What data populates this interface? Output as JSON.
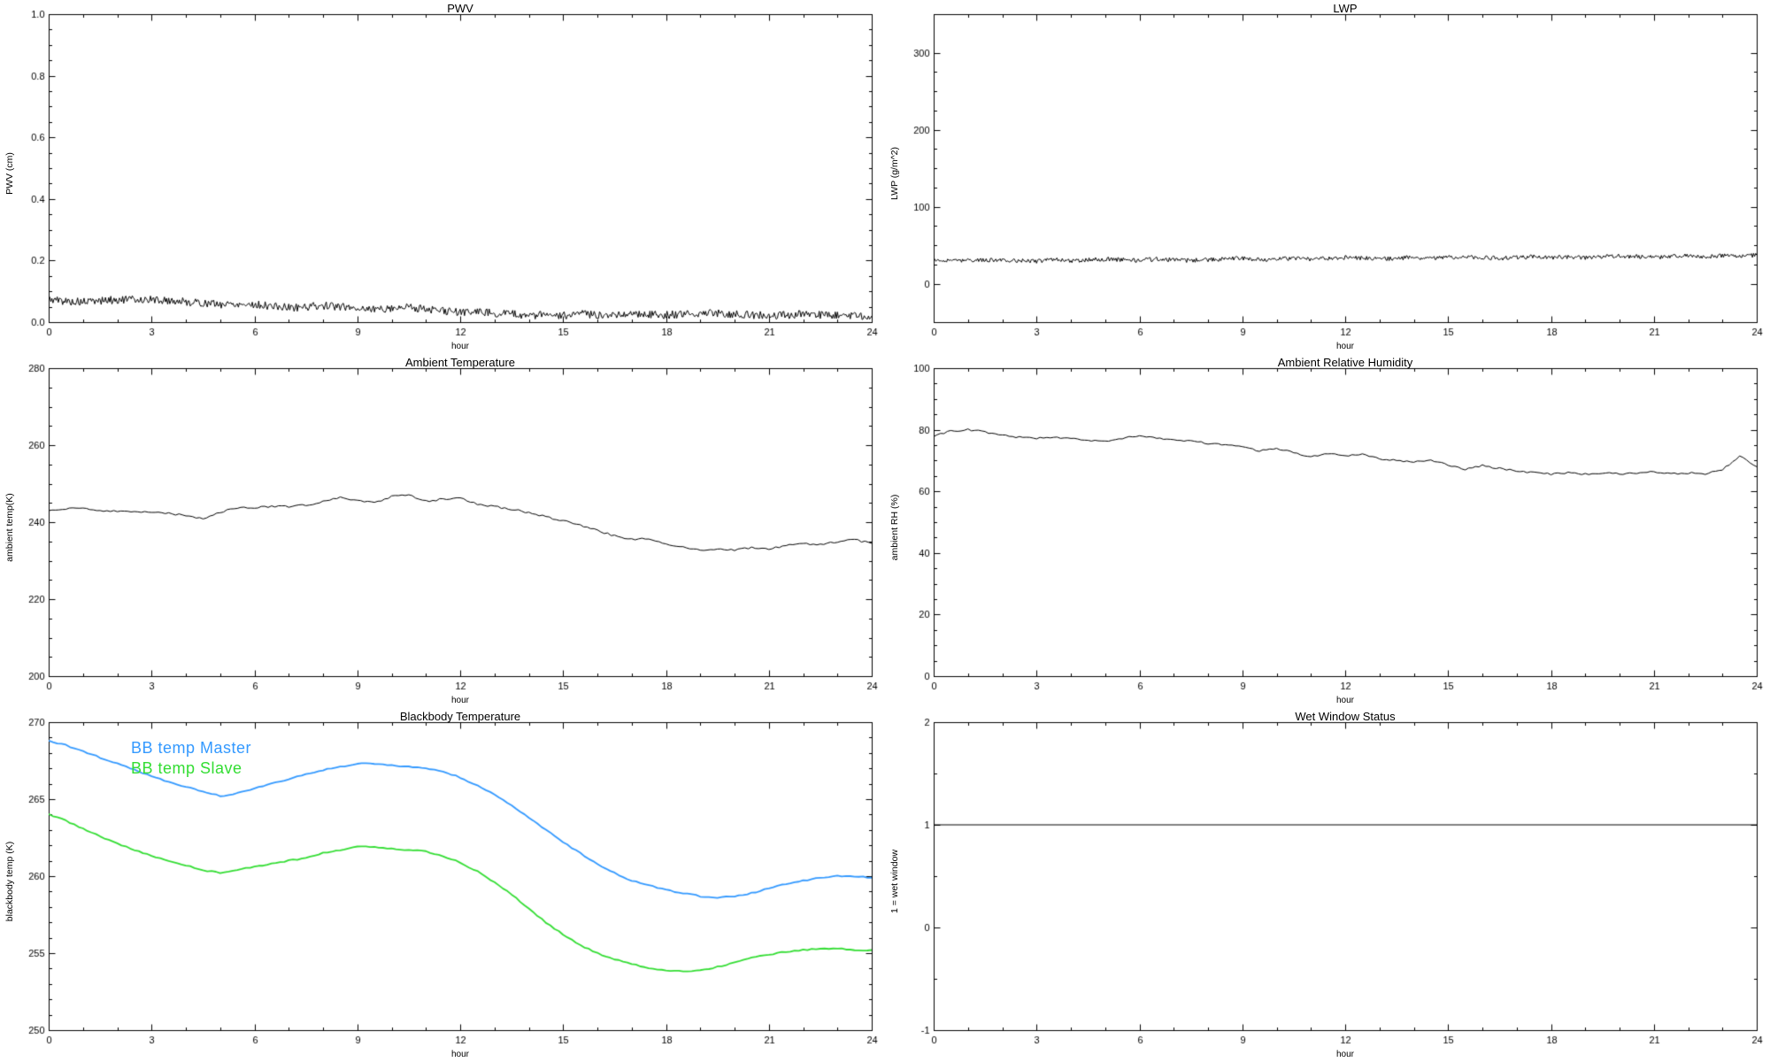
{
  "page": {
    "background": "#ffffff",
    "text_color": "#000000"
  },
  "chart_data": [
    {
      "type": "line",
      "title": "PWV",
      "xlabel": "hour",
      "ylabel": "PWV (cm)",
      "xlim": [
        0,
        24
      ],
      "ylim": [
        0.0,
        1.0
      ],
      "xticks": [
        0,
        3,
        6,
        9,
        12,
        15,
        18,
        21,
        24
      ],
      "xtick_labels": [
        "0",
        "3",
        "6",
        "9",
        "12",
        "15",
        "18",
        "21",
        "24"
      ],
      "yticks": [
        0.0,
        0.2,
        0.4,
        0.6,
        0.8,
        1.0
      ],
      "ytick_labels": [
        "0.0",
        "0.2",
        "0.4",
        "0.6",
        "0.8",
        "1.0"
      ],
      "x_minor": 2,
      "y_minor": 3,
      "grid": false,
      "legend_shown": false,
      "series": [
        {
          "name": "PWV",
          "color": "#000000",
          "line_width": 1,
          "x_start": 0,
          "x_step": 0.5,
          "noise": 0.013,
          "densify": 16,
          "values": [
            0.075,
            0.068,
            0.065,
            0.07,
            0.072,
            0.074,
            0.073,
            0.07,
            0.066,
            0.062,
            0.058,
            0.06,
            0.057,
            0.052,
            0.047,
            0.05,
            0.054,
            0.05,
            0.046,
            0.042,
            0.046,
            0.05,
            0.042,
            0.036,
            0.032,
            0.035,
            0.03,
            0.026,
            0.022,
            0.024,
            0.021,
            0.026,
            0.023,
            0.026,
            0.028,
            0.025,
            0.023,
            0.026,
            0.028,
            0.03,
            0.026,
            0.023,
            0.021,
            0.023,
            0.026,
            0.023,
            0.021,
            0.022,
            0.02
          ]
        }
      ]
    },
    {
      "type": "line",
      "title": "LWP",
      "xlabel": "hour",
      "ylabel": "LWP (g/m^2)",
      "xlim": [
        0,
        24
      ],
      "ylim": [
        -50,
        350
      ],
      "xticks": [
        0,
        3,
        6,
        9,
        12,
        15,
        18,
        21,
        24
      ],
      "xtick_labels": [
        "0",
        "3",
        "6",
        "9",
        "12",
        "15",
        "18",
        "21",
        "24"
      ],
      "yticks": [
        0,
        100,
        200,
        300
      ],
      "ytick_labels": [
        "0",
        "100",
        "200",
        "300"
      ],
      "x_minor": 2,
      "y_minor": 3,
      "grid": false,
      "legend_shown": false,
      "series": [
        {
          "name": "LWP",
          "color": "#000000",
          "line_width": 1,
          "x_start": 0,
          "x_step": 0.5,
          "noise": 2.8,
          "densify": 16,
          "values": [
            30,
            29,
            31,
            30,
            31,
            30,
            29,
            31,
            30,
            31,
            32,
            31,
            30,
            32,
            31,
            30,
            31,
            32,
            33,
            31,
            32,
            33,
            32,
            33,
            34,
            33,
            32,
            33,
            34,
            33,
            34,
            35,
            34,
            33,
            34,
            35,
            34,
            35,
            34,
            35,
            36,
            35,
            34,
            35,
            36,
            35,
            36,
            36,
            37
          ]
        }
      ]
    },
    {
      "type": "line",
      "title": "Ambient Temperature",
      "xlabel": "hour",
      "ylabel": "ambient temp(K)",
      "xlim": [
        0,
        24
      ],
      "ylim": [
        200,
        280
      ],
      "xticks": [
        0,
        3,
        6,
        9,
        12,
        15,
        18,
        21,
        24
      ],
      "xtick_labels": [
        "0",
        "3",
        "6",
        "9",
        "12",
        "15",
        "18",
        "21",
        "24"
      ],
      "yticks": [
        200,
        220,
        240,
        260,
        280
      ],
      "ytick_labels": [
        "200",
        "220",
        "240",
        "260",
        "280"
      ],
      "x_minor": 2,
      "y_minor": 3,
      "grid": false,
      "legend_shown": false,
      "series": [
        {
          "name": "ambient temp",
          "color": "#000000",
          "line_width": 1,
          "x_start": 0,
          "x_step": 0.5,
          "noise": 0.25,
          "densify": 5,
          "values": [
            243.2,
            243.4,
            243.6,
            243.1,
            242.8,
            242.6,
            242.7,
            242.4,
            241.6,
            240.9,
            242.6,
            243.6,
            243.8,
            244.0,
            244.1,
            244.4,
            245.3,
            246.4,
            245.7,
            245.0,
            246.6,
            247.0,
            245.4,
            246.0,
            246.4,
            244.6,
            244.0,
            243.4,
            242.4,
            241.4,
            240.4,
            239.2,
            237.8,
            236.4,
            235.6,
            235.8,
            234.4,
            233.4,
            232.6,
            233.0,
            232.7,
            233.4,
            233.1,
            233.9,
            234.4,
            234.1,
            234.9,
            235.4,
            234.5
          ]
        }
      ]
    },
    {
      "type": "line",
      "title": "Ambient Relative Humidity",
      "xlabel": "hour",
      "ylabel": "ambient RH (%)",
      "xlim": [
        0,
        24
      ],
      "ylim": [
        0,
        100
      ],
      "xticks": [
        0,
        3,
        6,
        9,
        12,
        15,
        18,
        21,
        24
      ],
      "xtick_labels": [
        "0",
        "3",
        "6",
        "9",
        "12",
        "15",
        "18",
        "21",
        "24"
      ],
      "yticks": [
        0,
        20,
        40,
        60,
        80,
        100
      ],
      "ytick_labels": [
        "0",
        "20",
        "40",
        "60",
        "80",
        "100"
      ],
      "x_minor": 2,
      "y_minor": 3,
      "grid": false,
      "legend_shown": false,
      "series": [
        {
          "name": "ambient RH",
          "color": "#000000",
          "line_width": 1,
          "x_start": 0,
          "x_step": 0.5,
          "noise": 0.3,
          "densify": 5,
          "values": [
            78,
            79.5,
            80,
            79.3,
            78.2,
            77.6,
            77.2,
            77.5,
            77.1,
            76.6,
            76.2,
            77.3,
            78,
            77.4,
            76.8,
            76.3,
            75.6,
            75,
            74.4,
            73.2,
            74,
            72.6,
            71.2,
            72.4,
            71.4,
            72,
            70.6,
            70.1,
            69.6,
            70,
            68.6,
            67.2,
            68.4,
            67.4,
            66.6,
            66,
            65.6,
            66.1,
            65.6,
            66,
            65.6,
            66,
            66.4,
            65.6,
            66,
            65.6,
            67,
            71.5,
            68
          ]
        }
      ]
    },
    {
      "type": "line",
      "title": "Blackbody Temperature",
      "xlabel": "hour",
      "ylabel": "blackbody temp (K)",
      "xlim": [
        0,
        24
      ],
      "ylim": [
        250,
        270
      ],
      "xticks": [
        0,
        3,
        6,
        9,
        12,
        15,
        18,
        21,
        24
      ],
      "xtick_labels": [
        "0",
        "3",
        "6",
        "9",
        "12",
        "15",
        "18",
        "21",
        "24"
      ],
      "yticks": [
        250,
        255,
        260,
        265,
        270
      ],
      "ytick_labels": [
        "250",
        "255",
        "260",
        "265",
        "270"
      ],
      "x_minor": 2,
      "y_minor": 4,
      "grid": false,
      "legend_shown": true,
      "legend": {
        "position": "top-left",
        "items": [
          {
            "label": "BB temp Master",
            "color": "#3399ff"
          },
          {
            "label": "BB temp Slave",
            "color": "#33dd33"
          }
        ]
      },
      "series": [
        {
          "name": "BB temp Master",
          "color": "#3399ff",
          "line_width": 1.8,
          "x_start": 0,
          "x_step": 0.5,
          "noise": 0.04,
          "densify": 4,
          "values": [
            268.8,
            268.5,
            268.1,
            267.7,
            267.3,
            266.9,
            266.5,
            266.1,
            265.8,
            265.5,
            265.2,
            265.4,
            265.7,
            266.0,
            266.3,
            266.6,
            266.9,
            267.1,
            267.3,
            267.3,
            267.2,
            267.1,
            267.0,
            266.8,
            266.4,
            265.9,
            265.3,
            264.6,
            263.8,
            263.0,
            262.2,
            261.5,
            260.8,
            260.2,
            259.7,
            259.4,
            259.1,
            258.9,
            258.7,
            258.6,
            258.7,
            258.9,
            259.2,
            259.5,
            259.7,
            259.9,
            260.0,
            260.0,
            259.9
          ]
        },
        {
          "name": "BB temp Slave",
          "color": "#33dd33",
          "line_width": 1.8,
          "x_start": 0,
          "x_step": 0.5,
          "noise": 0.04,
          "densify": 4,
          "values": [
            264.0,
            263.6,
            263.1,
            262.6,
            262.1,
            261.7,
            261.3,
            261.0,
            260.7,
            260.4,
            260.2,
            260.4,
            260.6,
            260.8,
            261.0,
            261.2,
            261.5,
            261.7,
            261.9,
            261.9,
            261.8,
            261.7,
            261.6,
            261.3,
            260.9,
            260.3,
            259.6,
            258.8,
            257.9,
            257.0,
            256.2,
            255.5,
            255.0,
            254.6,
            254.3,
            254.0,
            253.9,
            253.8,
            253.9,
            254.1,
            254.4,
            254.7,
            254.9,
            255.1,
            255.2,
            255.3,
            255.3,
            255.2,
            255.2
          ]
        }
      ]
    },
    {
      "type": "line",
      "title": "Wet Window Status",
      "xlabel": "hour",
      "ylabel": "1 = wet window",
      "xlim": [
        0,
        24
      ],
      "ylim": [
        -1,
        2
      ],
      "xticks": [
        0,
        3,
        6,
        9,
        12,
        15,
        18,
        21,
        24
      ],
      "xtick_labels": [
        "0",
        "3",
        "6",
        "9",
        "12",
        "15",
        "18",
        "21",
        "24"
      ],
      "yticks": [
        -1,
        0,
        1,
        2
      ],
      "ytick_labels": [
        "-1",
        "0",
        "1",
        "2"
      ],
      "x_minor": 2,
      "y_minor": 1,
      "grid": false,
      "legend_shown": false,
      "series": [
        {
          "name": "wet window flag",
          "color": "#000000",
          "line_width": 1,
          "x_start": 0,
          "x_step": 24,
          "noise": 0,
          "densify": 1,
          "values": [
            1,
            1
          ]
        }
      ]
    }
  ]
}
